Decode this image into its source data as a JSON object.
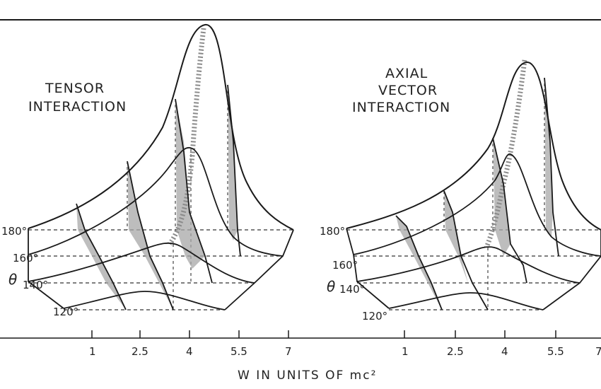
{
  "panels": [
    {
      "title_lines": [
        "TENSOR",
        "INTERACTION"
      ],
      "theta_symbol": "θ",
      "angle_labels": [
        "180°",
        "160°",
        "140°",
        "120°"
      ]
    },
    {
      "title_lines": [
        "AXIAL",
        "VECTOR",
        "INTERACTION"
      ],
      "theta_symbol": "θ",
      "angle_labels": [
        "180°",
        "160°",
        "140°",
        "120°"
      ]
    }
  ],
  "x_axis": {
    "label": "W IN UNITS OF mc²",
    "ticks": [
      "1",
      "2.5",
      "4",
      "5.5",
      "7"
    ]
  },
  "colors": {
    "ink": "#1a1a1a",
    "shade": "#9a9a9a",
    "dashed": "#333333"
  }
}
